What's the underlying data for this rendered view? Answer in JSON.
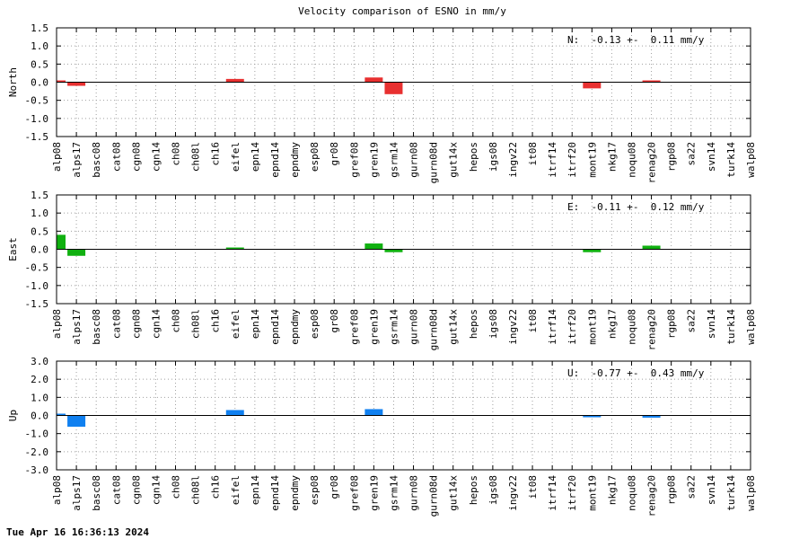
{
  "title": "Velocity comparison of ESNO in mm/y",
  "timestamp": "Tue Apr 16 16:36:13 2024",
  "chart_data": {
    "type": "bar",
    "title": "Velocity comparison of ESNO in mm/y",
    "categories": [
      "alp08",
      "alps17",
      "basc08",
      "cat08",
      "cgn08",
      "cgn14",
      "ch08",
      "ch08l",
      "ch16",
      "eifel",
      "epn14",
      "epnd14",
      "epndmy",
      "esp08",
      "gr08",
      "gref08",
      "gren19",
      "gsrm14",
      "gurn08",
      "gurn08d",
      "gut14x",
      "hepos",
      "igs08",
      "ingv22",
      "it08",
      "itrf14",
      "itrf20",
      "mont19",
      "nkg17",
      "noqu08",
      "renag20",
      "rgp08",
      "sa22",
      "svn14",
      "turk14",
      "walp08"
    ],
    "grid": true,
    "panels": [
      {
        "name": "north",
        "ylabel": "North",
        "color": "#e83030",
        "ylim": [
          -1.5,
          1.5
        ],
        "yticks": [
          "1.5",
          "1.0",
          "0.5",
          "0.0",
          "-0.5",
          "-1.0",
          "-1.5"
        ],
        "annotation": "N:  -0.13 +-  0.11 mm/y",
        "values": [
          0.04,
          -0.1,
          null,
          null,
          null,
          null,
          null,
          null,
          null,
          0.09,
          null,
          null,
          null,
          null,
          null,
          null,
          0.13,
          -0.33,
          null,
          null,
          null,
          null,
          null,
          null,
          null,
          null,
          null,
          -0.17,
          null,
          null,
          0.01,
          null,
          null,
          null,
          null,
          null
        ]
      },
      {
        "name": "east",
        "ylabel": "East",
        "color": "#10b010",
        "ylim": [
          -1.5,
          1.5
        ],
        "yticks": [
          "1.5",
          "1.0",
          "0.5",
          "0.0",
          "-0.5",
          "-1.0",
          "-1.5"
        ],
        "annotation": "E:  -0.11 +-  0.12 mm/y",
        "values": [
          0.4,
          -0.18,
          null,
          null,
          null,
          null,
          null,
          null,
          null,
          0.02,
          null,
          null,
          null,
          null,
          null,
          null,
          0.16,
          -0.08,
          null,
          null,
          null,
          null,
          null,
          null,
          null,
          null,
          null,
          -0.08,
          null,
          null,
          0.1,
          null,
          null,
          null,
          null,
          null
        ]
      },
      {
        "name": "up",
        "ylabel": "Up",
        "color": "#1080f0",
        "ylim": [
          -3.0,
          3.0
        ],
        "yticks": [
          "3.0",
          "2.0",
          "1.0",
          "0.0",
          "-1.0",
          "-2.0",
          "-3.0"
        ],
        "annotation": "U:  -0.77 +-  0.43 mm/y",
        "values": [
          0.1,
          -0.62,
          null,
          null,
          null,
          null,
          null,
          null,
          null,
          0.3,
          null,
          null,
          null,
          null,
          null,
          null,
          0.35,
          null,
          null,
          null,
          null,
          null,
          null,
          null,
          null,
          null,
          null,
          -0.07,
          null,
          null,
          -0.12,
          null,
          null,
          null,
          null,
          null
        ]
      }
    ]
  }
}
